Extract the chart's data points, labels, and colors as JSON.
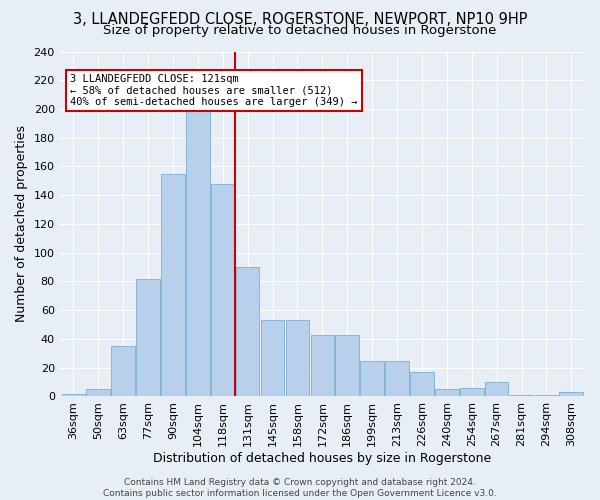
{
  "title": "3, LLANDEGFEDD CLOSE, ROGERSTONE, NEWPORT, NP10 9HP",
  "subtitle": "Size of property relative to detached houses in Rogerstone",
  "xlabel": "Distribution of detached houses by size in Rogerstone",
  "ylabel": "Number of detached properties",
  "footer_line1": "Contains HM Land Registry data © Crown copyright and database right 2024.",
  "footer_line2": "Contains public sector information licensed under the Open Government Licence v3.0.",
  "categories": [
    "36sqm",
    "50sqm",
    "63sqm",
    "77sqm",
    "90sqm",
    "104sqm",
    "118sqm",
    "131sqm",
    "145sqm",
    "158sqm",
    "172sqm",
    "186sqm",
    "199sqm",
    "213sqm",
    "226sqm",
    "240sqm",
    "254sqm",
    "267sqm",
    "281sqm",
    "294sqm",
    "308sqm"
  ],
  "bar_heights": [
    2,
    5,
    35,
    82,
    155,
    202,
    148,
    90,
    53,
    53,
    43,
    43,
    25,
    25,
    17,
    5,
    6,
    10,
    1,
    1,
    3
  ],
  "bar_color": "#b8d0ea",
  "bar_edge_color": "#7aafd4",
  "vline_color": "#cc0000",
  "vline_x_index": 6.5,
  "annotation_text": "3 LLANDEGFEDD CLOSE: 121sqm\n← 58% of detached houses are smaller (512)\n40% of semi-detached houses are larger (349) →",
  "annotation_box_edgecolor": "#cc0000",
  "ylim": [
    0,
    240
  ],
  "yticks": [
    0,
    20,
    40,
    60,
    80,
    100,
    120,
    140,
    160,
    180,
    200,
    220,
    240
  ],
  "bg_color": "#e8eef6",
  "grid_color": "#ffffff",
  "title_fontsize": 10.5,
  "subtitle_fontsize": 9.5,
  "ylabel_fontsize": 9,
  "xlabel_fontsize": 9,
  "tick_fontsize": 8,
  "annotation_fontsize": 7.5,
  "footer_fontsize": 6.5
}
